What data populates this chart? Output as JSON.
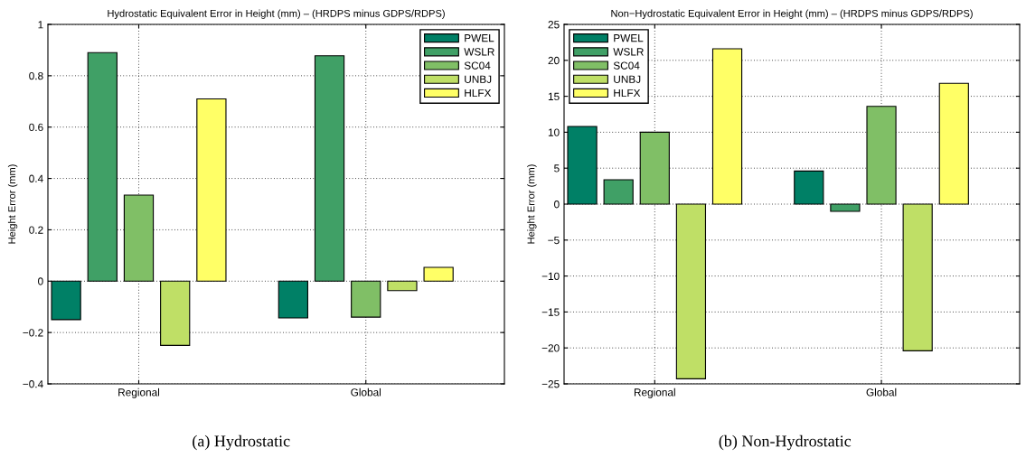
{
  "chart_data": [
    {
      "type": "bar",
      "title": "Hydrostatic Equivalent Error in Height (mm) – (HRDPS minus GDPS/RDPS)",
      "ylabel": "Height Error (mm)",
      "categories": [
        "Regional",
        "Global"
      ],
      "series": [
        {
          "name": "PWEL",
          "color": "#008066",
          "values": [
            -0.15,
            -0.143
          ]
        },
        {
          "name": "WSLR",
          "color": "#40a066",
          "values": [
            0.89,
            0.878
          ]
        },
        {
          "name": "SC04",
          "color": "#80bf66",
          "values": [
            0.335,
            -0.14
          ]
        },
        {
          "name": "UNBJ",
          "color": "#bfdf66",
          "values": [
            -0.25,
            -0.037
          ]
        },
        {
          "name": "HLFX",
          "color": "#ffff66",
          "values": [
            0.71,
            0.054
          ]
        }
      ],
      "ylim": [
        -0.4,
        1
      ],
      "yticks": [
        -0.4,
        -0.2,
        0,
        0.2,
        0.4,
        0.6,
        0.8,
        1
      ],
      "grid": true,
      "legend": "top right",
      "annotations": [
        "(a) Hydrostatic"
      ]
    },
    {
      "type": "bar",
      "title": "Non−Hydrostatic Equivalent Error in Height (mm) – (HRDPS minus GDPS/RDPS)",
      "ylabel": "Height Error (mm)",
      "categories": [
        "Regional",
        "Global"
      ],
      "series": [
        {
          "name": "PWEL",
          "color": "#008066",
          "values": [
            10.8,
            4.6
          ]
        },
        {
          "name": "WSLR",
          "color": "#40a066",
          "values": [
            3.4,
            -1.0
          ]
        },
        {
          "name": "SC04",
          "color": "#80bf66",
          "values": [
            10.0,
            13.6
          ]
        },
        {
          "name": "UNBJ",
          "color": "#bfdf66",
          "values": [
            -24.3,
            -20.4
          ]
        },
        {
          "name": "HLFX",
          "color": "#ffff66",
          "values": [
            21.6,
            16.8
          ]
        }
      ],
      "ylim": [
        -25,
        25
      ],
      "yticks": [
        -25,
        -20,
        -15,
        -10,
        -5,
        0,
        5,
        10,
        15,
        20,
        25
      ],
      "grid": true,
      "legend": "top left",
      "annotations": [
        "(b) Non-Hydrostatic"
      ]
    }
  ]
}
